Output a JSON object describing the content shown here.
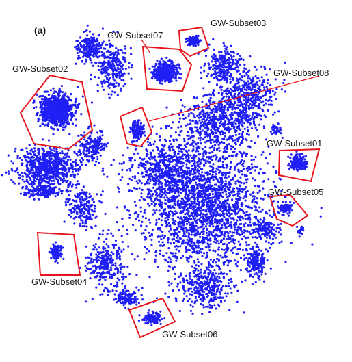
{
  "chart_data": {
    "type": "scatter",
    "panel_label": "(a)",
    "point_color": "#1f1ff5",
    "highlight_color": "#e8141b",
    "grid": false,
    "legend": "none",
    "subsets": [
      {
        "id": "01",
        "label": "GW-Subset01"
      },
      {
        "id": "02",
        "label": "GW-Subset02"
      },
      {
        "id": "03",
        "label": "GW-Subset03"
      },
      {
        "id": "04",
        "label": "GW-Subset04"
      },
      {
        "id": "05",
        "label": "GW-Subset05"
      },
      {
        "id": "06",
        "label": "GW-Subset06"
      },
      {
        "id": "07",
        "label": "GW-Subset07"
      },
      {
        "id": "08",
        "label": "GW-Subset08"
      }
    ]
  }
}
